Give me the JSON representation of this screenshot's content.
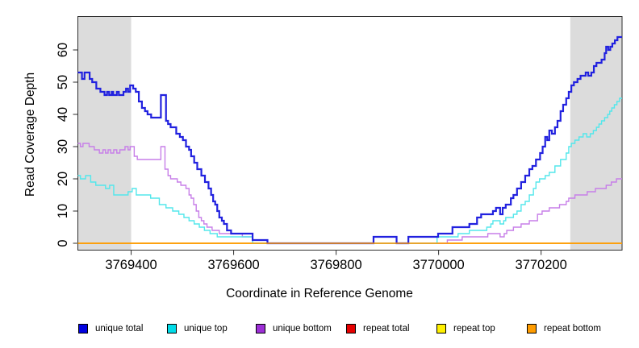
{
  "chart_data": {
    "type": "line",
    "step": true,
    "title": "",
    "xlabel": "Coordinate in Reference Genome",
    "ylabel": "Read Coverage Depth",
    "x_range": [
      3769296,
      3770358
    ],
    "ylim": [
      0,
      65
    ],
    "x_ticks": [
      3769400,
      3769600,
      3769800,
      3770000,
      3770200
    ],
    "x_tick_labels": [
      "3769400",
      "3769600",
      "3769800",
      "3770000",
      "3770200"
    ],
    "y_ticks": [
      0,
      10,
      20,
      30,
      40,
      50,
      60
    ],
    "grid": false,
    "legend_position": "bottom",
    "shade_color": "#DCDCDC",
    "axis_color": "#2E2E2E",
    "shaded_regions": [
      [
        3769296,
        3769400
      ],
      [
        3770257,
        3770358
      ]
    ],
    "series": [
      {
        "name": "unique total",
        "color": "#0202E0",
        "line_color": "#2121DF",
        "width": 2.2,
        "points": [
          [
            3769296,
            53
          ],
          [
            3769304,
            51
          ],
          [
            3769309,
            53
          ],
          [
            3769319,
            51
          ],
          [
            3769324,
            50
          ],
          [
            3769332,
            48
          ],
          [
            3769340,
            47
          ],
          [
            3769348,
            46
          ],
          [
            3769353,
            47
          ],
          [
            3769357,
            46
          ],
          [
            3769362,
            47
          ],
          [
            3769365,
            46
          ],
          [
            3769372,
            47
          ],
          [
            3769376,
            46
          ],
          [
            3769385,
            47
          ],
          [
            3769390,
            48
          ],
          [
            3769394,
            47
          ],
          [
            3769398,
            49
          ],
          [
            3769404,
            48
          ],
          [
            3769409,
            47
          ],
          [
            3769415,
            44
          ],
          [
            3769421,
            42
          ],
          [
            3769427,
            41
          ],
          [
            3769432,
            40
          ],
          [
            3769439,
            39
          ],
          [
            3769458,
            46
          ],
          [
            3769468,
            38
          ],
          [
            3769472,
            37
          ],
          [
            3769477,
            36
          ],
          [
            3769488,
            34
          ],
          [
            3769495,
            33
          ],
          [
            3769501,
            32
          ],
          [
            3769507,
            30
          ],
          [
            3769513,
            29
          ],
          [
            3769517,
            27
          ],
          [
            3769523,
            25
          ],
          [
            3769529,
            23
          ],
          [
            3769537,
            21
          ],
          [
            3769544,
            19
          ],
          [
            3769551,
            17
          ],
          [
            3769556,
            15
          ],
          [
            3769560,
            13
          ],
          [
            3769564,
            12
          ],
          [
            3769568,
            10
          ],
          [
            3769572,
            8
          ],
          [
            3769577,
            7
          ],
          [
            3769581,
            6
          ],
          [
            3769587,
            4
          ],
          [
            3769595,
            3
          ],
          [
            3769637,
            1
          ],
          [
            3769666,
            0
          ],
          [
            3769873,
            2
          ],
          [
            3769918,
            0
          ],
          [
            3769941,
            2
          ],
          [
            3769999,
            3
          ],
          [
            3770027,
            5
          ],
          [
            3770060,
            6
          ],
          [
            3770075,
            8
          ],
          [
            3770083,
            9
          ],
          [
            3770106,
            10
          ],
          [
            3770112,
            11
          ],
          [
            3770120,
            9
          ],
          [
            3770125,
            11
          ],
          [
            3770131,
            12
          ],
          [
            3770141,
            14
          ],
          [
            3770146,
            15
          ],
          [
            3770153,
            17
          ],
          [
            3770161,
            19
          ],
          [
            3770169,
            21
          ],
          [
            3770177,
            23
          ],
          [
            3770183,
            24
          ],
          [
            3770190,
            26
          ],
          [
            3770198,
            28
          ],
          [
            3770203,
            30
          ],
          [
            3770208,
            33
          ],
          [
            3770212,
            32
          ],
          [
            3770216,
            35
          ],
          [
            3770221,
            34
          ],
          [
            3770227,
            36
          ],
          [
            3770232,
            38
          ],
          [
            3770238,
            41
          ],
          [
            3770243,
            43
          ],
          [
            3770249,
            45
          ],
          [
            3770254,
            47
          ],
          [
            3770259,
            49
          ],
          [
            3770264,
            50
          ],
          [
            3770271,
            51
          ],
          [
            3770277,
            52
          ],
          [
            3770287,
            53
          ],
          [
            3770292,
            52
          ],
          [
            3770298,
            53
          ],
          [
            3770303,
            55
          ],
          [
            3770308,
            56
          ],
          [
            3770318,
            57
          ],
          [
            3770324,
            59
          ],
          [
            3770327,
            61
          ],
          [
            3770331,
            60
          ],
          [
            3770335,
            61
          ],
          [
            3770339,
            62
          ],
          [
            3770344,
            63
          ],
          [
            3770349,
            64
          ]
        ]
      },
      {
        "name": "unique top",
        "color": "#00DCE8",
        "line_color": "#53E7EB",
        "width": 1.4,
        "points": [
          [
            3769296,
            21
          ],
          [
            3769301,
            20
          ],
          [
            3769311,
            21
          ],
          [
            3769321,
            19
          ],
          [
            3769331,
            18
          ],
          [
            3769350,
            17
          ],
          [
            3769358,
            18
          ],
          [
            3769366,
            15
          ],
          [
            3769394,
            16
          ],
          [
            3769402,
            17
          ],
          [
            3769410,
            15
          ],
          [
            3769438,
            14
          ],
          [
            3769455,
            12
          ],
          [
            3769468,
            11
          ],
          [
            3769481,
            10
          ],
          [
            3769493,
            9
          ],
          [
            3769503,
            8
          ],
          [
            3769513,
            7
          ],
          [
            3769523,
            6
          ],
          [
            3769533,
            5
          ],
          [
            3769543,
            4
          ],
          [
            3769554,
            3
          ],
          [
            3769568,
            2
          ],
          [
            3769637,
            0
          ],
          [
            3769997,
            2
          ],
          [
            3770038,
            3
          ],
          [
            3770060,
            4
          ],
          [
            3770094,
            5
          ],
          [
            3770102,
            6
          ],
          [
            3770106,
            7
          ],
          [
            3770120,
            6
          ],
          [
            3770127,
            7
          ],
          [
            3770131,
            8
          ],
          [
            3770146,
            9
          ],
          [
            3770153,
            10
          ],
          [
            3770161,
            12
          ],
          [
            3770169,
            13
          ],
          [
            3770177,
            15
          ],
          [
            3770185,
            17
          ],
          [
            3770190,
            19
          ],
          [
            3770197,
            20
          ],
          [
            3770208,
            21
          ],
          [
            3770216,
            22
          ],
          [
            3770227,
            24
          ],
          [
            3770238,
            26
          ],
          [
            3770249,
            28
          ],
          [
            3770254,
            30
          ],
          [
            3770259,
            31
          ],
          [
            3770266,
            32
          ],
          [
            3770274,
            33
          ],
          [
            3770282,
            34
          ],
          [
            3770289,
            33
          ],
          [
            3770296,
            34
          ],
          [
            3770302,
            35
          ],
          [
            3770308,
            36
          ],
          [
            3770313,
            37
          ],
          [
            3770318,
            38
          ],
          [
            3770324,
            39
          ],
          [
            3770330,
            40
          ],
          [
            3770334,
            41
          ],
          [
            3770338,
            42
          ],
          [
            3770343,
            43
          ],
          [
            3770348,
            44
          ],
          [
            3770353,
            45
          ]
        ]
      },
      {
        "name": "unique bottom",
        "color": "#9D2FD6",
        "line_color": "#C77FE8",
        "width": 1.4,
        "points": [
          [
            3769296,
            31
          ],
          [
            3769301,
            30
          ],
          [
            3769306,
            31
          ],
          [
            3769318,
            30
          ],
          [
            3769328,
            29
          ],
          [
            3769338,
            28
          ],
          [
            3769345,
            29
          ],
          [
            3769350,
            28
          ],
          [
            3769355,
            29
          ],
          [
            3769360,
            28
          ],
          [
            3769366,
            29
          ],
          [
            3769372,
            28
          ],
          [
            3769378,
            29
          ],
          [
            3769388,
            30
          ],
          [
            3769394,
            29
          ],
          [
            3769398,
            30
          ],
          [
            3769406,
            27
          ],
          [
            3769412,
            26
          ],
          [
            3769458,
            30
          ],
          [
            3769466,
            23
          ],
          [
            3769472,
            21
          ],
          [
            3769477,
            20
          ],
          [
            3769490,
            19
          ],
          [
            3769497,
            18
          ],
          [
            3769507,
            17
          ],
          [
            3769513,
            15
          ],
          [
            3769517,
            14
          ],
          [
            3769522,
            12
          ],
          [
            3769527,
            10
          ],
          [
            3769532,
            8
          ],
          [
            3769537,
            7
          ],
          [
            3769542,
            6
          ],
          [
            3769548,
            5
          ],
          [
            3769558,
            4
          ],
          [
            3769572,
            3
          ],
          [
            3769617,
            2
          ],
          [
            3769637,
            1
          ],
          [
            3769666,
            0
          ],
          [
            3770017,
            1
          ],
          [
            3770046,
            2
          ],
          [
            3770096,
            3
          ],
          [
            3770120,
            2
          ],
          [
            3770128,
            3
          ],
          [
            3770133,
            4
          ],
          [
            3770146,
            5
          ],
          [
            3770161,
            6
          ],
          [
            3770177,
            7
          ],
          [
            3770193,
            9
          ],
          [
            3770202,
            10
          ],
          [
            3770216,
            11
          ],
          [
            3770236,
            12
          ],
          [
            3770249,
            13
          ],
          [
            3770254,
            14
          ],
          [
            3770266,
            15
          ],
          [
            3770290,
            16
          ],
          [
            3770306,
            17
          ],
          [
            3770327,
            18
          ],
          [
            3770337,
            19
          ],
          [
            3770347,
            20
          ]
        ]
      },
      {
        "name": "repeat total",
        "color": "#E60000",
        "line_color": "#E60000",
        "width": 1.4,
        "points": [
          [
            3769296,
            0
          ]
        ]
      },
      {
        "name": "repeat top",
        "color": "#FFF000",
        "line_color": "#FFE800",
        "width": 1.4,
        "points": [
          [
            3769296,
            0
          ]
        ]
      },
      {
        "name": "repeat bottom",
        "color": "#FF9C00",
        "line_color": "#FF9C00",
        "width": 1.6,
        "points": [
          [
            3769296,
            0
          ]
        ]
      }
    ]
  }
}
